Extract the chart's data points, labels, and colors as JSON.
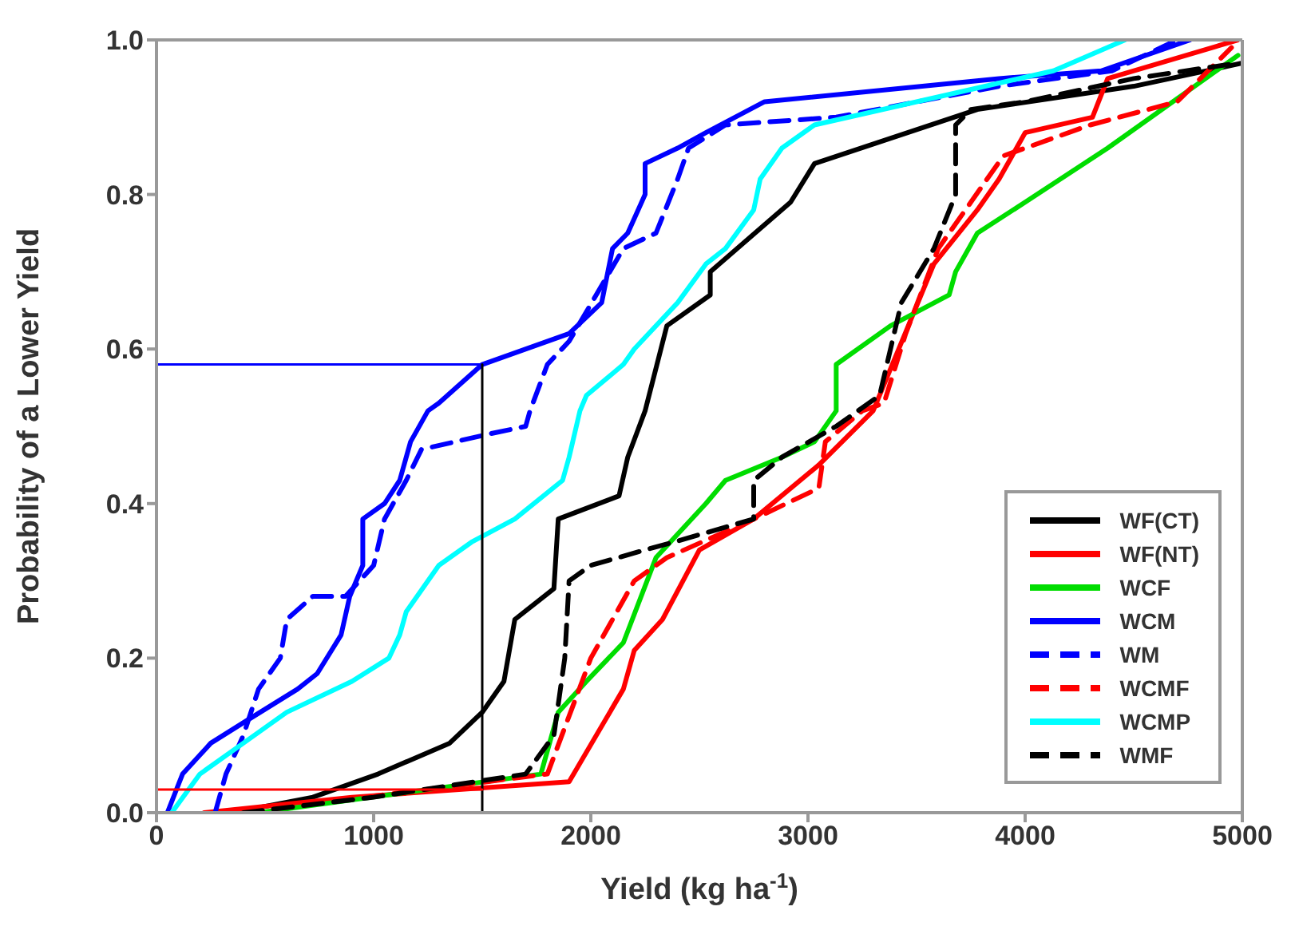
{
  "chart_data": {
    "type": "line",
    "xlabel": "Yield (kg ha$^{-1}$)",
    "ylabel": "Probability of a Lower Yield",
    "xlim": [
      0,
      5000
    ],
    "xticks": [
      0,
      1000,
      2000,
      3000,
      4000,
      5000
    ],
    "ylim": [
      0,
      1
    ],
    "yticks": [
      {
        "value": 0,
        "label": "0.0"
      },
      {
        "value": 0.2,
        "label": "0.2"
      },
      {
        "value": 0.4,
        "label": "0.4"
      },
      {
        "value": 0.6,
        "label": "0.6"
      },
      {
        "value": 0.8,
        "label": "0.8"
      },
      {
        "value": 1,
        "label": "1.0"
      }
    ],
    "grid": false,
    "legend": "bottom right",
    "marker": "none",
    "series": [
      {
        "name": "WF(CT)",
        "color": "#000000",
        "line_style": "solid",
        "x": [
          350,
          720,
          1020,
          1350,
          1500,
          1600,
          1650,
          1830,
          1850,
          2130,
          2170,
          2250,
          2350,
          2550,
          2550,
          2920,
          3030,
          3780,
          4500,
          5000
        ],
        "values": [
          0,
          0.02,
          0.05,
          0.09,
          0.13,
          0.17,
          0.25,
          0.29,
          0.38,
          0.41,
          0.46,
          0.52,
          0.63,
          0.67,
          0.7,
          0.79,
          0.84,
          0.91,
          0.94,
          0.97
        ]
      },
      {
        "name": "WF(NT)",
        "color": "#ff0000",
        "line_style": "solid",
        "x": [
          220,
          900,
          1900,
          2150,
          2200,
          2330,
          2500,
          2750,
          3050,
          3300,
          3580,
          3780,
          3880,
          4000,
          4310,
          4380,
          4980
        ],
        "values": [
          0,
          0.02,
          0.04,
          0.16,
          0.21,
          0.25,
          0.34,
          0.38,
          0.45,
          0.52,
          0.71,
          0.78,
          0.82,
          0.88,
          0.9,
          0.95,
          1
        ]
      },
      {
        "name": "WCF",
        "color": "#00dd00",
        "line_style": "solid",
        "x": [
          470,
          1770,
          1850,
          1980,
          2150,
          2300,
          2530,
          2620,
          2880,
          3030,
          3130,
          3130,
          3380,
          3650,
          3680,
          3780,
          4000,
          4380,
          4980
        ],
        "values": [
          0,
          0.05,
          0.13,
          0.17,
          0.22,
          0.33,
          0.4,
          0.43,
          0.46,
          0.48,
          0.52,
          0.58,
          0.63,
          0.67,
          0.7,
          0.75,
          0.79,
          0.86,
          0.98
        ]
      },
      {
        "name": "WCM",
        "color": "#0000ff",
        "line_style": "solid",
        "x": [
          50,
          120,
          250,
          420,
          650,
          740,
          850,
          890,
          950,
          950,
          1050,
          1120,
          1170,
          1250,
          1300,
          1500,
          1900,
          2050,
          2100,
          2170,
          2250,
          2250,
          2400,
          2530,
          2800,
          3880,
          4350,
          4760
        ],
        "values": [
          0,
          0.05,
          0.09,
          0.12,
          0.16,
          0.18,
          0.23,
          0.28,
          0.32,
          0.38,
          0.4,
          0.43,
          0.48,
          0.52,
          0.53,
          0.58,
          0.62,
          0.66,
          0.73,
          0.75,
          0.8,
          0.84,
          0.86,
          0.88,
          0.92,
          0.95,
          0.96,
          1
        ]
      },
      {
        "name": "WM",
        "color": "#0000ff",
        "line_style": "dashed",
        "x": [
          270,
          320,
          400,
          470,
          570,
          600,
          720,
          870,
          1000,
          1050,
          1150,
          1220,
          1530,
          1700,
          1720,
          1800,
          1900,
          2150,
          2300,
          2400,
          2450,
          2620,
          3130,
          3880,
          4400,
          4700
        ],
        "values": [
          0,
          0.05,
          0.1,
          0.16,
          0.2,
          0.25,
          0.28,
          0.28,
          0.32,
          0.38,
          0.43,
          0.47,
          0.49,
          0.5,
          0.52,
          0.58,
          0.61,
          0.73,
          0.75,
          0.82,
          0.86,
          0.89,
          0.9,
          0.94,
          0.96,
          1
        ]
      },
      {
        "name": "WCMF",
        "color": "#ff0000",
        "line_style": "dashed",
        "x": [
          400,
          1800,
          2000,
          2200,
          2350,
          2750,
          3050,
          3080,
          3250,
          3350,
          3450,
          3600,
          3900,
          4300,
          4700,
          4950
        ],
        "values": [
          0,
          0.05,
          0.2,
          0.3,
          0.33,
          0.38,
          0.42,
          0.48,
          0.52,
          0.53,
          0.62,
          0.73,
          0.85,
          0.89,
          0.92,
          0.99
        ]
      },
      {
        "name": "WCMP",
        "color": "#00ffff",
        "line_style": "solid",
        "x": [
          70,
          200,
          400,
          600,
          900,
          1070,
          1120,
          1150,
          1300,
          1450,
          1650,
          1870,
          1900,
          1950,
          1980,
          2150,
          2200,
          2400,
          2530,
          2620,
          2750,
          2780,
          2880,
          3030,
          4130,
          4460
        ],
        "values": [
          0,
          0.05,
          0.09,
          0.13,
          0.17,
          0.2,
          0.23,
          0.26,
          0.32,
          0.35,
          0.38,
          0.43,
          0.46,
          0.52,
          0.54,
          0.58,
          0.6,
          0.66,
          0.71,
          0.73,
          0.78,
          0.82,
          0.86,
          0.89,
          0.96,
          1
        ]
      },
      {
        "name": "WMF",
        "color": "#000000",
        "line_style": "dashed",
        "x": [
          400,
          1000,
          1700,
          1830,
          1880,
          1900,
          2000,
          2250,
          2380,
          2750,
          2750,
          2880,
          3130,
          3330,
          3430,
          3580,
          3680,
          3680,
          3750,
          4000,
          4500,
          4980
        ],
        "values": [
          0,
          0.02,
          0.05,
          0.1,
          0.2,
          0.3,
          0.32,
          0.34,
          0.35,
          0.38,
          0.43,
          0.46,
          0.5,
          0.54,
          0.66,
          0.73,
          0.8,
          0.89,
          0.91,
          0.92,
          0.95,
          0.97
        ]
      },
      {
        "color": "#0000ff",
        "line_style": "solid",
        "x": [
          0,
          1500
        ],
        "values": [
          0.58,
          0.58
        ]
      },
      {
        "color": "#000000",
        "line_style": "solid",
        "x": [
          1500,
          1500
        ],
        "values": [
          0,
          0.58
        ]
      },
      {
        "color": "#ff0000",
        "line_style": "solid",
        "x": [
          0,
          1500
        ],
        "values": [
          0.03,
          0.03
        ]
      }
    ]
  }
}
